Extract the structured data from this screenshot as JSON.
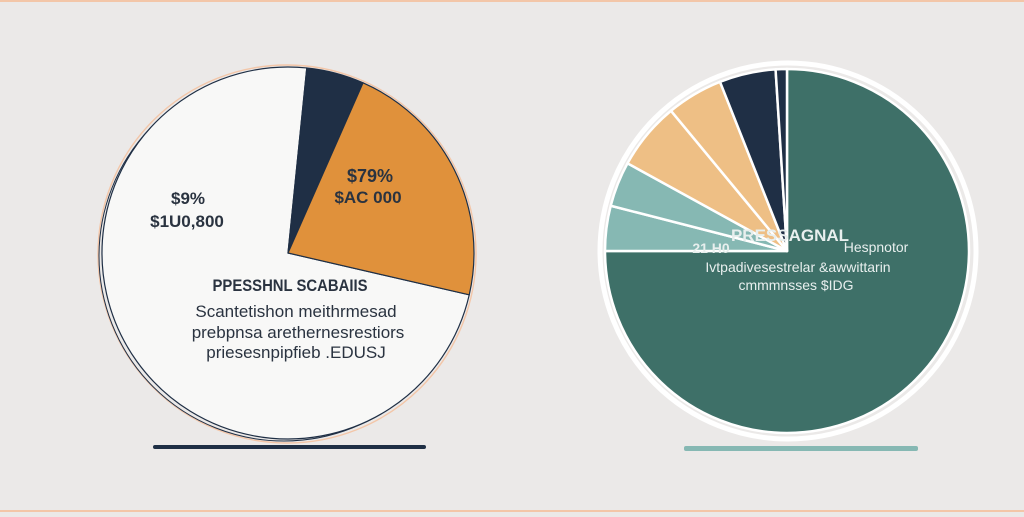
{
  "colors": {
    "background": "#ebe9e8",
    "frame": "#f3c6a8",
    "navy": "#1f2f45",
    "orange": "#e0913b",
    "light_orange": "#eebf85",
    "teal": "#3e7068",
    "light_teal": "#86b8b3",
    "white_disk": "#f8f8f7",
    "text_dark": "#2a3340",
    "text_light": "#e8efee"
  },
  "chart_data": [
    {
      "type": "pie",
      "title": "",
      "slices": [
        {
          "label": "",
          "value": 73,
          "color": "#f8f8f7"
        },
        {
          "label": "",
          "value": 5,
          "color": "#1f2f45"
        },
        {
          "label": "",
          "value": 22,
          "color": "#e0913b"
        }
      ],
      "labels": {
        "slice_percent": "$79%",
        "slice_amount": "$AC 000",
        "side_percent": "$9%",
        "side_amount": "$1U0,800",
        "heading": "PPESSHNL SCABAIIS",
        "body_lines": [
          "Scantetishon meithrmesad",
          "prebpnsa arethernesrestiors",
          "priesesnpipfieb .EDUSJ"
        ]
      }
    },
    {
      "type": "pie",
      "title": "",
      "slices": [
        {
          "label": "",
          "value": 75,
          "color": "#3e7068"
        },
        {
          "label": "",
          "value": 4,
          "color": "#86b8b3"
        },
        {
          "label": "",
          "value": 4,
          "color": "#86b8b3"
        },
        {
          "label": "",
          "value": 6,
          "color": "#eebf85"
        },
        {
          "label": "",
          "value": 5,
          "color": "#eebf85"
        },
        {
          "label": "",
          "value": 5,
          "color": "#1f2f45"
        },
        {
          "label": "",
          "value": 1,
          "color": "#1f2f45"
        }
      ],
      "labels": {
        "heading": "PRESSAGNAL",
        "left_note": "21 H0",
        "right_note": "Hespnotor",
        "body_lines": [
          "Ivtpadivesestrelar &awwittarin",
          "cmmmnsses $IDG"
        ]
      }
    }
  ]
}
